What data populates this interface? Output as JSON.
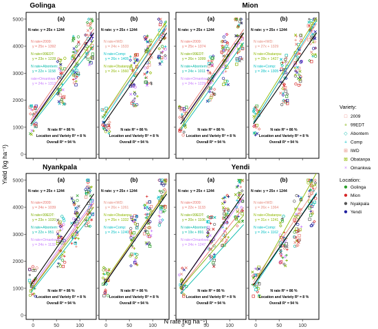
{
  "figure": {
    "ylabel": "Yield (kg ha⁻¹)",
    "xlabel": "N rate (kg ha⁻¹)"
  },
  "colors": {
    "overall_line": "#000000",
    "panel_border": "#000000",
    "variety": {
      "2009": "#e8736b",
      "99EDT": "#7cae00",
      "Abontem": "#00b8a9",
      "Comp": "#00bfc4",
      "IWD": "#e58a7c",
      "Obatanpa": "#8fb800",
      "Omankwa": "#c77cff"
    },
    "location": {
      "Golinga": "#2ca02c",
      "Mion": "#d62728",
      "Nyakpala": "#555555",
      "Yendi": "#1f1f9f"
    }
  },
  "legend": {
    "variety_title": "Variety:",
    "varieties": [
      {
        "label": "2009",
        "symbol": "□"
      },
      {
        "label": "99EDT",
        "symbol": "+"
      },
      {
        "label": "Abontem",
        "symbol": "◇"
      },
      {
        "label": "Comp",
        "symbol": "+"
      },
      {
        "label": "IWD",
        "symbol": "⊞"
      },
      {
        "label": "Obatanpa",
        "symbol": "⊠"
      },
      {
        "label": "Omankwa",
        "symbol": "×"
      }
    ],
    "location_title": "Location:",
    "locations": [
      {
        "label": "Golinga"
      },
      {
        "label": "Mion"
      },
      {
        "label": "Nyakpala"
      },
      {
        "label": "Yendi"
      }
    ]
  },
  "location_titles": [
    "Golinga",
    "Mion",
    "Nyankpala",
    "Yendi"
  ],
  "chart_data": {
    "type": "scatter",
    "xlim": [
      -15,
      135
    ],
    "ylim": [
      -150,
      5250
    ],
    "x_ticks": [
      0,
      50,
      100
    ],
    "y_ticks": [
      0,
      1000,
      2000,
      3000,
      4000,
      5000
    ],
    "x_levels": [
      0,
      60,
      90,
      120
    ],
    "overall_fit": {
      "label": "N rate: y = 25x + 1244",
      "slope": 25,
      "intercept": 1244
    },
    "footer": [
      "N rate R² = 86 %",
      "Location and Variety R² = 8 %",
      "Overall R² = 94 %"
    ],
    "panels": [
      {
        "location": "Golinga",
        "tag": "(a)",
        "fits": [
          {
            "variety": "2009",
            "label": "N rate+2009:",
            "eq": "y = 25x + 1392",
            "slope": 25,
            "intercept": 1392
          },
          {
            "variety": "99EDT",
            "label": "N rate+99EDT:",
            "eq": "y = 23x + 1228",
            "slope": 23,
            "intercept": 1228
          },
          {
            "variety": "Abontem",
            "label": "N rate+Abontem:",
            "eq": "y = 22x + 1158",
            "slope": 22,
            "intercept": 1158
          },
          {
            "variety": "Omankwa",
            "label": "rate+Omankwa:",
            "eq": "y = 24x + 1313",
            "slope": 24,
            "intercept": 1313
          }
        ]
      },
      {
        "location": "Golinga",
        "tag": "(b)",
        "fits": [
          {
            "variety": "IWD",
            "label": "N rate+IWD:",
            "eq": "y = 24x + 1533",
            "slope": 24,
            "intercept": 1533
          },
          {
            "variety": "Comp",
            "label": "N rate+Comp:",
            "eq": "y = 26x + 1405",
            "slope": 26,
            "intercept": 1405
          },
          {
            "variety": "Obatanpa",
            "label": "N rate+Obatanpa:",
            "eq": "y = 26x + 1560",
            "slope": 26,
            "intercept": 1560
          }
        ]
      },
      {
        "location": "Mion",
        "tag": "(a)",
        "fits": [
          {
            "variety": "2009",
            "label": "N rate+2009:",
            "eq": "y = 25x + 1374",
            "slope": 25,
            "intercept": 1374
          },
          {
            "variety": "99EDT",
            "label": "N rate+99EDT:",
            "eq": "y = 26x + 1099",
            "slope": 26,
            "intercept": 1099
          },
          {
            "variety": "Abontem",
            "label": "N rate+Abontem:",
            "eq": "y = 24x + 1011",
            "slope": 24,
            "intercept": 1011
          },
          {
            "variety": "Omankwa",
            "label": "N rate+Omankwa:",
            "eq": "y = 24x + 1229",
            "slope": 24,
            "intercept": 1229
          }
        ]
      },
      {
        "location": "Mion",
        "tag": "(b)",
        "fits": [
          {
            "variety": "IWD",
            "label": "N rate+IWD:",
            "eq": "y = 27x + 1329",
            "slope": 27,
            "intercept": 1329
          },
          {
            "variety": "Obatanpa",
            "label": "N rate+Obatanpa:",
            "eq": "y = 28x + 1427",
            "slope": 28,
            "intercept": 1427
          },
          {
            "variety": "Comp",
            "label": "N rate+Comp:",
            "eq": "y = 28x + 1305",
            "slope": 28,
            "intercept": 1305
          }
        ]
      },
      {
        "location": "Nyankpala",
        "tag": "(a)",
        "fits": [
          {
            "variety": "2009",
            "label": "N rate+2009:",
            "eq": "y = 24x + 1039",
            "slope": 24,
            "intercept": 1039
          },
          {
            "variety": "99EDT",
            "label": "N rate+99EDT:",
            "eq": "y = 23x + 1020",
            "slope": 23,
            "intercept": 1020
          },
          {
            "variety": "Abontem",
            "label": "N rate+Abontem:",
            "eq": "y = 22x + 951",
            "slope": 22,
            "intercept": 951
          },
          {
            "variety": "Omankwa",
            "label": "N rate+Omankwa:",
            "eq": "y = 24x + 1132",
            "slope": 24,
            "intercept": 1132
          }
        ]
      },
      {
        "location": "Nyankpala",
        "tag": "(b)",
        "fits": [
          {
            "variety": "IWD",
            "label": "N rate+IWD:",
            "eq": "y = 26x + 1261",
            "slope": 26,
            "intercept": 1261
          },
          {
            "variety": "Obatanpa",
            "label": "N rate+Obatanpa:",
            "eq": "y = 25x + 1332",
            "slope": 25,
            "intercept": 1332
          },
          {
            "variety": "Comp",
            "label": "N rate+Comp:",
            "eq": "y = 25x + 1240",
            "slope": 25,
            "intercept": 1240
          }
        ]
      },
      {
        "location": "Yendi",
        "tag": "(a)",
        "fits": [
          {
            "variety": "2009",
            "label": "N rate+2009:",
            "eq": "y = 22x + 1133",
            "slope": 22,
            "intercept": 1133
          },
          {
            "variety": "99EDT",
            "label": "N rate+99EDT:",
            "eq": "y = 20x + 1106",
            "slope": 20,
            "intercept": 1106
          },
          {
            "variety": "Abontem",
            "label": "N rate+Abontem:",
            "eq": "y = 19x + 891",
            "slope": 19,
            "intercept": 891
          },
          {
            "variety": "Omankwa",
            "label": "N rate+Omankwa:",
            "eq": "y = 24x + 1247",
            "slope": 24,
            "intercept": 1247
          }
        ]
      },
      {
        "location": "Yendi",
        "tag": "(b)",
        "fits": [
          {
            "variety": "IWD",
            "label": "N rate+IWD:",
            "eq": "y = 26x + 1364",
            "slope": 26,
            "intercept": 1364
          },
          {
            "variety": "Obatanpa",
            "label": "N rate+Obatanpa:",
            "eq": "y = 31x + 1241",
            "slope": 31,
            "intercept": 1241
          },
          {
            "variety": "Comp",
            "label": "N rate+Comp:",
            "eq": "y = 26x + 1162",
            "slope": 26,
            "intercept": 1162
          }
        ]
      }
    ]
  }
}
